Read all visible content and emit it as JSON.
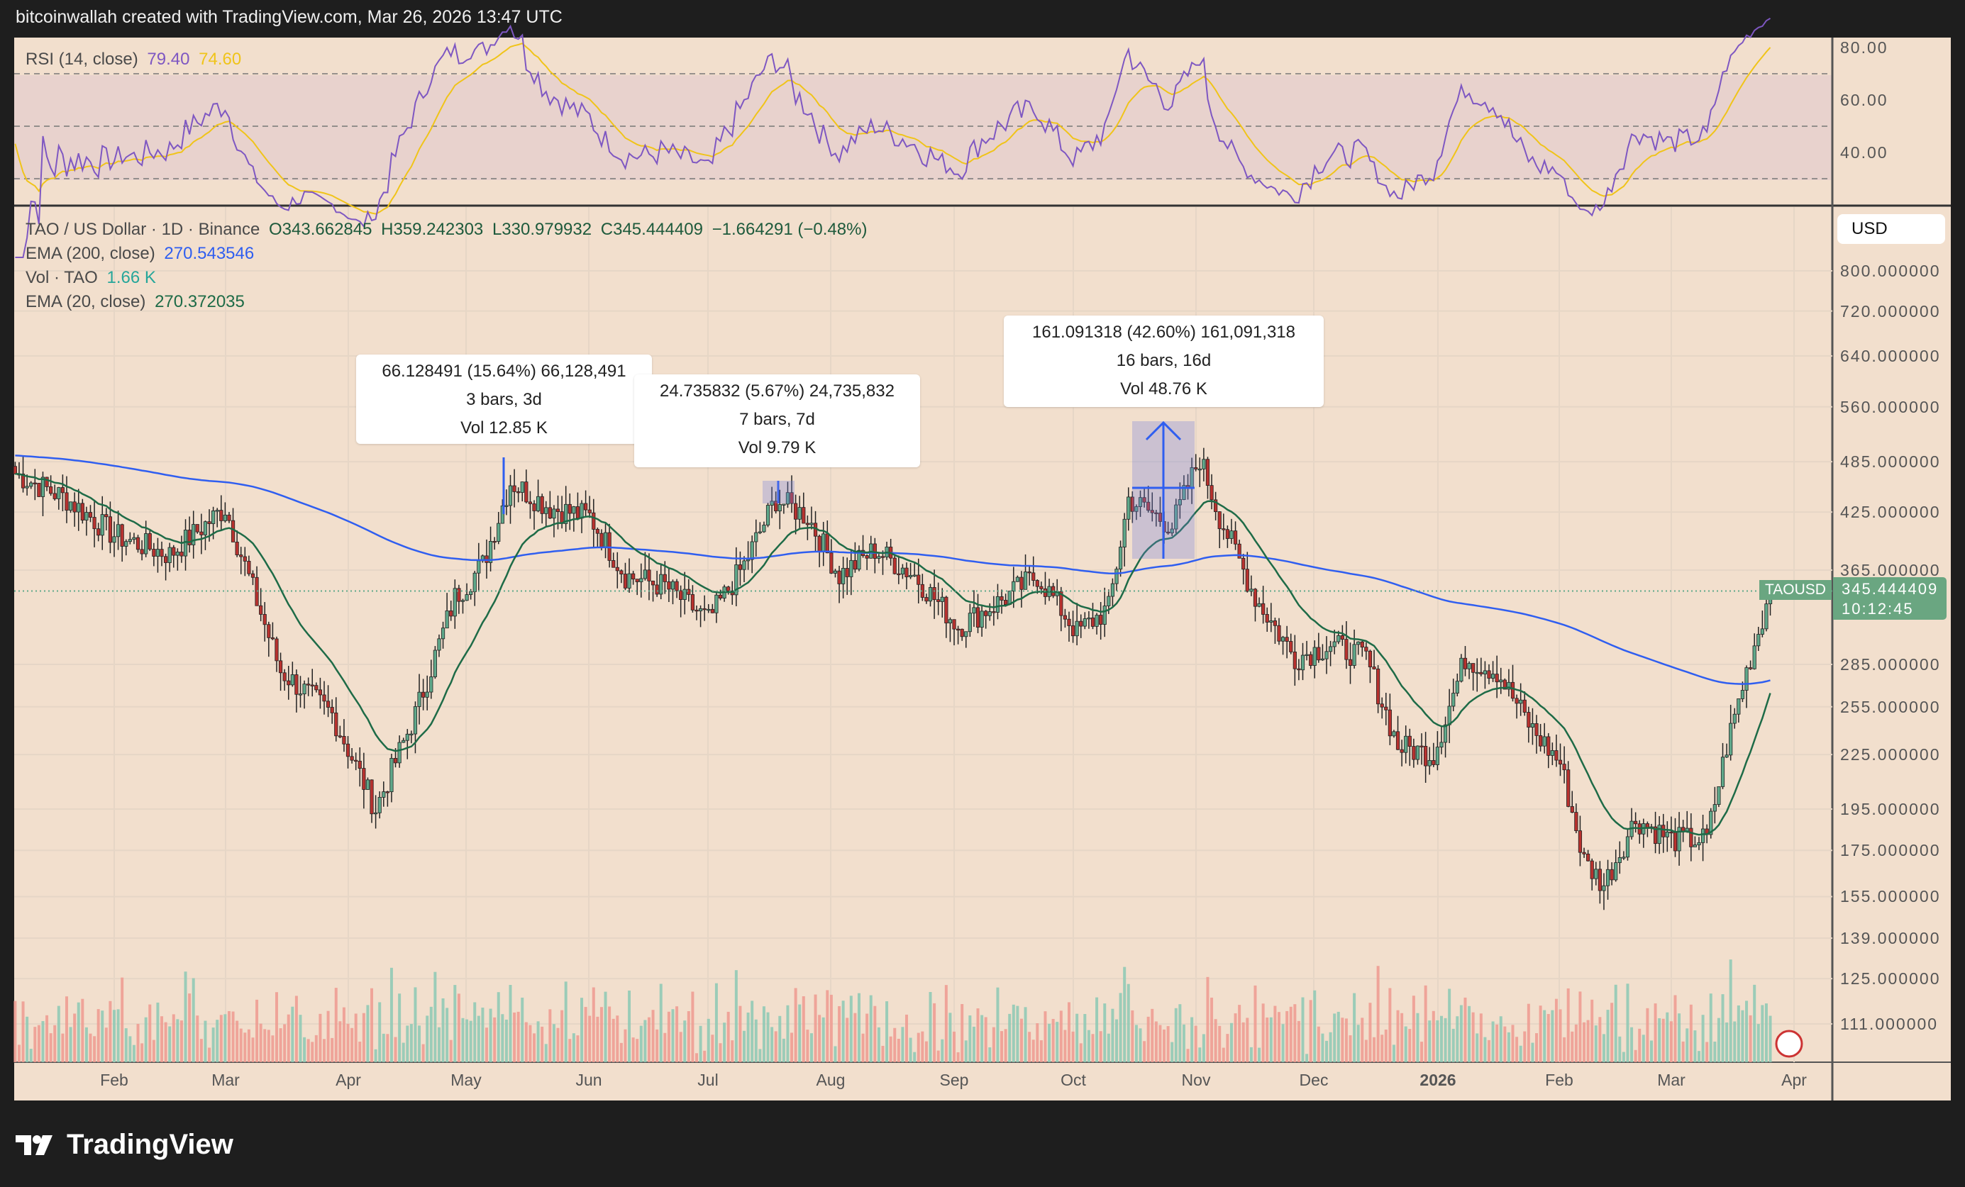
{
  "header": {
    "attribution": "bitcoinwallah created with TradingView.com, Mar 26, 2026 13:47 UTC"
  },
  "rsi_legend": {
    "label": "RSI (14, close)",
    "value": "79.40",
    "ma_value": "74.60"
  },
  "legend": {
    "symbol": "TAO / US Dollar · 1D · Binance",
    "open": "O343.662845",
    "high": "H359.242303",
    "low": "L330.979932",
    "close": "C345.444409",
    "change": "−1.664291 (−0.48%)",
    "ema200_label": "EMA (200, close)",
    "ema200_value": "270.543546",
    "vol_label": "Vol · TAO",
    "vol_value": "1.66 K",
    "ema20_label": "EMA (20, close)",
    "ema20_value": "270.372035"
  },
  "measurements": [
    {
      "line1": "66.128491 (15.64%) 66,128,491",
      "line2": "3 bars, 3d",
      "line3": "Vol 12.85 K"
    },
    {
      "line1": "24.735832 (5.67%) 24,735,832",
      "line2": "7 bars, 7d",
      "line3": "Vol 9.79 K"
    },
    {
      "line1": "161.091318 (42.60%) 161,091,318",
      "line2": "16 bars, 16d",
      "line3": "Vol 48.76 K"
    }
  ],
  "price_axis": {
    "currency": "USD",
    "symbol_tag": "TAOUSD",
    "last_price": "345.444409",
    "countdown": "10:12:45"
  },
  "footer": {
    "brand": "TradingView"
  },
  "colors": {
    "background": "#f2dfcd",
    "up": "#5fa88a",
    "down": "#b8322f",
    "ema200": "#2f5ef0",
    "ema20": "#1e6b47",
    "rsi": "#7e57c2",
    "rsi_ma": "#f0c419"
  },
  "chart_data": {
    "type": "candlestick",
    "scale": "log",
    "rsi_ticks": [
      "80.00",
      "60.00",
      "40.00"
    ],
    "price_ticks": [
      "800.000000",
      "720.000000",
      "640.000000",
      "560.000000",
      "485.000000",
      "425.000000",
      "365.000000",
      "285.000000",
      "255.000000",
      "225.000000",
      "195.000000",
      "175.000000",
      "155.000000",
      "139.000000",
      "125.000000",
      "111.000000"
    ],
    "x_ticks": [
      "Feb",
      "Mar",
      "Apr",
      "May",
      "Jun",
      "Jul",
      "Aug",
      "Sep",
      "Oct",
      "Nov",
      "Dec",
      "2026",
      "Feb",
      "Mar",
      "Apr"
    ],
    "approx_closes": [
      [
        "2025-01-07",
        470
      ],
      [
        "2025-01-20",
        440
      ],
      [
        "2025-02-01",
        400
      ],
      [
        "2025-02-15",
        380
      ],
      [
        "2025-03-01",
        430
      ],
      [
        "2025-03-15",
        280
      ],
      [
        "2025-03-28",
        250
      ],
      [
        "2025-04-08",
        195
      ],
      [
        "2025-04-18",
        250
      ],
      [
        "2025-04-28",
        340
      ],
      [
        "2025-05-05",
        370
      ],
      [
        "2025-05-12",
        460
      ],
      [
        "2025-05-22",
        430
      ],
      [
        "2025-06-01",
        420
      ],
      [
        "2025-06-10",
        360
      ],
      [
        "2025-06-20",
        350
      ],
      [
        "2025-07-01",
        320
      ],
      [
        "2025-07-10",
        370
      ],
      [
        "2025-07-18",
        440
      ],
      [
        "2025-07-26",
        420
      ],
      [
        "2025-08-03",
        360
      ],
      [
        "2025-08-12",
        385
      ],
      [
        "2025-08-22",
        360
      ],
      [
        "2025-09-02",
        315
      ],
      [
        "2025-09-12",
        335
      ],
      [
        "2025-09-22",
        360
      ],
      [
        "2025-10-02",
        310
      ],
      [
        "2025-10-10",
        330
      ],
      [
        "2025-10-15",
        440
      ],
      [
        "2025-10-26",
        410
      ],
      [
        "2025-11-02",
        490
      ],
      [
        "2025-11-07",
        420
      ],
      [
        "2025-11-16",
        340
      ],
      [
        "2025-11-26",
        290
      ],
      [
        "2025-12-05",
        300
      ],
      [
        "2025-12-14",
        290
      ],
      [
        "2025-12-22",
        230
      ],
      [
        "2025-12-31",
        225
      ],
      [
        "2026-01-08",
        290
      ],
      [
        "2026-01-16",
        280
      ],
      [
        "2026-01-25",
        240
      ],
      [
        "2026-02-01",
        220
      ],
      [
        "2026-02-07",
        170
      ],
      [
        "2026-02-12",
        160
      ],
      [
        "2026-02-20",
        190
      ],
      [
        "2026-03-01",
        180
      ],
      [
        "2026-03-10",
        180
      ],
      [
        "2026-03-15",
        230
      ],
      [
        "2026-03-20",
        280
      ],
      [
        "2026-03-26",
        345.44
      ]
    ]
  }
}
